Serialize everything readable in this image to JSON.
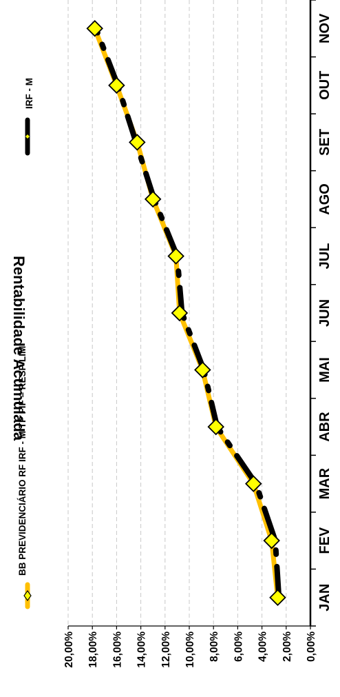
{
  "chart_data": {
    "type": "line",
    "title": "Rentabilidade Acumulada",
    "categories": [
      "JAN",
      "FEV",
      "MAR",
      "ABR",
      "MAI",
      "JUN",
      "JUL",
      "AGO",
      "SET",
      "OUT",
      "NOV"
    ],
    "ylim": [
      0,
      20
    ],
    "yticks": [
      "0,00%",
      "2,00%",
      "4,00%",
      "6,00%",
      "8,00%",
      "10,00%",
      "12,00%",
      "14,00%",
      "16,00%",
      "18,00%",
      "20,00%"
    ],
    "grid": true,
    "legend_position": "top",
    "orientation": "rotated-90",
    "series": [
      {
        "name": "BB PREVIDENCIÁRIO RF IRF - M TP FIF – RESP LIM",
        "values": [
          2.7,
          3.2,
          4.7,
          7.8,
          8.9,
          10.8,
          11.1,
          13.0,
          14.3,
          16.0,
          17.8
        ],
        "color": "#FFC000",
        "marker": "diamond",
        "marker_color": "#FFFF00"
      },
      {
        "name": "IRF - M",
        "values": [
          2.6,
          2.9,
          4.5,
          7.7,
          8.8,
          10.6,
          11.0,
          12.9,
          14.4,
          15.9,
          17.7
        ],
        "color": "#000000",
        "style": "dashed"
      }
    ]
  }
}
